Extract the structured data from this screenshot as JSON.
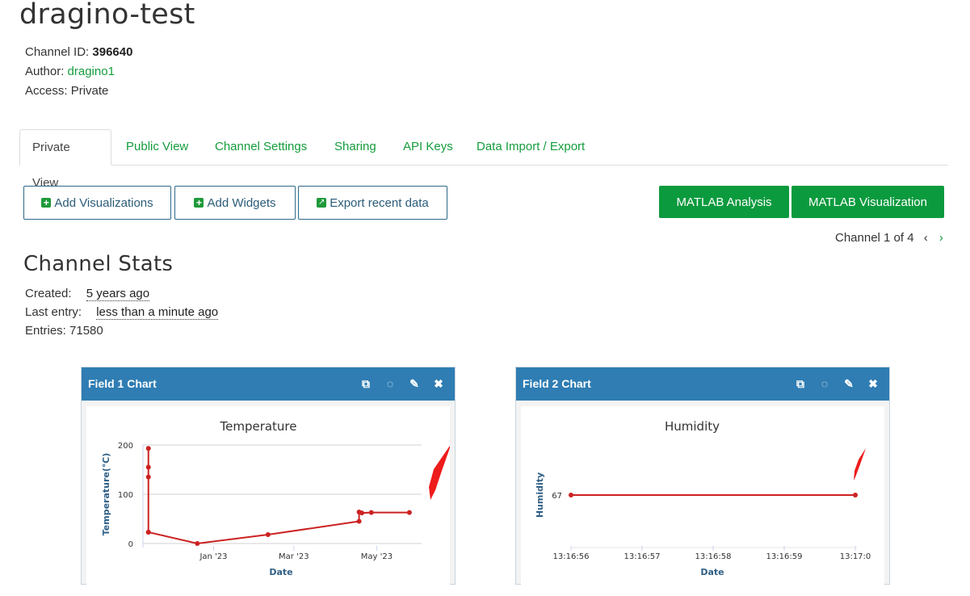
{
  "header": {
    "title": "dragino-test",
    "channel_id_label": "Channel ID: ",
    "channel_id": "396640",
    "author_label": "Author: ",
    "author": "dragino1",
    "access_label": "Access: ",
    "access": "Private"
  },
  "tabs": [
    {
      "label": "Private View"
    },
    {
      "label": "Public View"
    },
    {
      "label": "Channel Settings"
    },
    {
      "label": "Sharing"
    },
    {
      "label": "API Keys"
    },
    {
      "label": "Data Import / Export"
    }
  ],
  "toolbar": {
    "add_visualizations": "Add Visualizations",
    "add_widgets": "Add Widgets",
    "export_recent": "Export recent data",
    "matlab_analysis": "MATLAB Analysis",
    "matlab_visualization": "MATLAB Visualization"
  },
  "pager": {
    "text": "Channel 1 of 4"
  },
  "stats": {
    "title": "Channel Stats",
    "created_label": "Created:",
    "created": "5 years ago",
    "last_entry_label": "Last entry:",
    "last_entry": "less than a minute ago",
    "entries_label": "Entries: ",
    "entries": "71580"
  },
  "colors": {
    "accent": "#159c3d",
    "panel_header": "#2f7db3",
    "line": "#cc2222",
    "button_green": "#0c9a3e"
  },
  "panels": [
    {
      "title": "Field 1 Chart"
    },
    {
      "title": "Field 2 Chart"
    }
  ],
  "chart_data": [
    {
      "type": "line",
      "title": "Temperature",
      "xlabel": "Date",
      "ylabel": "Temperature(℃)",
      "ylim": [
        0,
        200
      ],
      "yticks": [
        0,
        100,
        200
      ],
      "xticks": [
        "Jan '23",
        "Mar '23",
        "May '23"
      ],
      "series": [
        {
          "x": [
            "2022-11-14",
            "2022-11-14",
            "2022-11-14",
            "2022-11-14",
            "2022-11-14",
            "2022-12-20",
            "2023-02-10",
            "2023-04-18",
            "2023-04-18",
            "2023-04-20",
            "2023-04-27",
            "2023-05-25"
          ],
          "values": [
            193,
            155,
            135,
            23,
            23,
            0,
            18,
            45,
            64,
            62,
            63,
            63
          ]
        }
      ],
      "grid": true
    },
    {
      "type": "line",
      "title": "Humidity",
      "xlabel": "Date",
      "ylabel": "Humidity",
      "yticks": [
        67
      ],
      "xticks": [
        "13:16:56",
        "13:16:57",
        "13:16:58",
        "13:16:59",
        "13:17:0"
      ],
      "series": [
        {
          "x": [
            "13:16:56",
            "13:17:00"
          ],
          "values": [
            67,
            67
          ]
        }
      ],
      "grid": false
    }
  ]
}
